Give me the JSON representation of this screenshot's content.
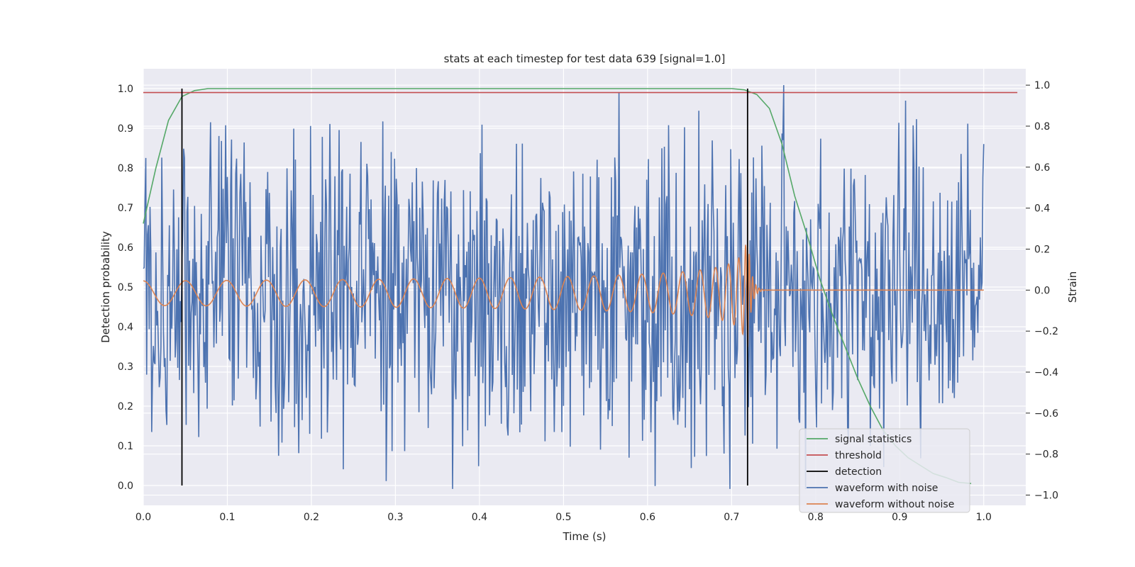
{
  "chart_data": {
    "type": "line",
    "title": "stats at each timestep for test data 639 [signal=1.0]",
    "xlabel": "Time (s)",
    "ylabel_left": "Detection probability",
    "ylabel_right": "Strain",
    "xlim": [
      0.0,
      1.05
    ],
    "ylim_left": [
      -0.05,
      1.05
    ],
    "ylim_right": [
      -1.05,
      1.08
    ],
    "xticks": [
      "0.0",
      "0.1",
      "0.2",
      "0.3",
      "0.4",
      "0.5",
      "0.6",
      "0.7",
      "0.8",
      "0.9",
      "1.0"
    ],
    "yticks_left": [
      "0.0",
      "0.1",
      "0.2",
      "0.3",
      "0.4",
      "0.5",
      "0.6",
      "0.7",
      "0.8",
      "0.9",
      "1.0"
    ],
    "yticks_right": [
      "−1.0",
      "−0.8",
      "−0.6",
      "−0.4",
      "−0.2",
      "0.0",
      "0.2",
      "0.4",
      "0.6",
      "0.8",
      "1.0"
    ],
    "grid": true,
    "legend_position": "lower-right",
    "colors": {
      "signal_statistics": "#55a868",
      "threshold": "#c44e52",
      "detection": "#000000",
      "waveform_with_noise": "#4c72b0",
      "waveform_without_noise": "#dd8452",
      "plot_background": "#eaeaf2",
      "grid": "#ffffff"
    },
    "series": [
      {
        "name": "signal statistics",
        "axis": "left",
        "x": [
          0.0,
          0.015,
          0.03,
          0.046,
          0.061,
          0.077,
          0.1,
          0.2,
          0.3,
          0.4,
          0.5,
          0.6,
          0.7,
          0.715,
          0.73,
          0.745,
          0.76,
          0.775,
          0.79,
          0.805,
          0.82,
          0.835,
          0.85,
          0.865,
          0.88,
          0.895,
          0.91,
          0.925,
          0.94,
          0.955,
          0.97,
          0.985
        ],
        "y": [
          0.66,
          0.8,
          0.92,
          0.98,
          0.995,
          1.0,
          1.0,
          1.0,
          1.0,
          1.0,
          1.0,
          1.0,
          1.0,
          0.997,
          0.985,
          0.95,
          0.86,
          0.73,
          0.63,
          0.52,
          0.43,
          0.35,
          0.27,
          0.2,
          0.14,
          0.1,
          0.07,
          0.05,
          0.03,
          0.02,
          0.008,
          0.005
        ]
      },
      {
        "name": "threshold",
        "axis": "left",
        "x": [
          0.0,
          1.04
        ],
        "y": [
          0.99,
          0.99
        ]
      },
      {
        "name": "detection",
        "axis": "left",
        "x": [
          0.046,
          0.719
        ],
        "y": [
          0.0,
          1.0
        ]
      },
      {
        "name": "waveform with noise",
        "axis": "right",
        "x": [
          0.0,
          0.05,
          0.1,
          0.15,
          0.2,
          0.25,
          0.3,
          0.35,
          0.4,
          0.45,
          0.5,
          0.55,
          0.6,
          0.65,
          0.7,
          0.75,
          0.8,
          0.85,
          0.9,
          0.95,
          1.0
        ],
        "y": [
          0.1,
          0.7,
          -0.5,
          0.9,
          -0.9,
          0.6,
          -0.8,
          0.55,
          -0.7,
          0.65,
          -0.6,
          0.75,
          -0.9,
          0.7,
          0.8,
          -0.95,
          -0.75,
          0.95,
          -0.8,
          0.6,
          0.05
        ],
        "y_range": [
          -0.97,
          1.0
        ]
      },
      {
        "name": "waveform without noise",
        "axis": "right",
        "x_range": [
          0.0,
          1.0
        ],
        "y_range": [
          -0.29,
          0.4
        ],
        "merger_time": 0.719
      }
    ]
  }
}
